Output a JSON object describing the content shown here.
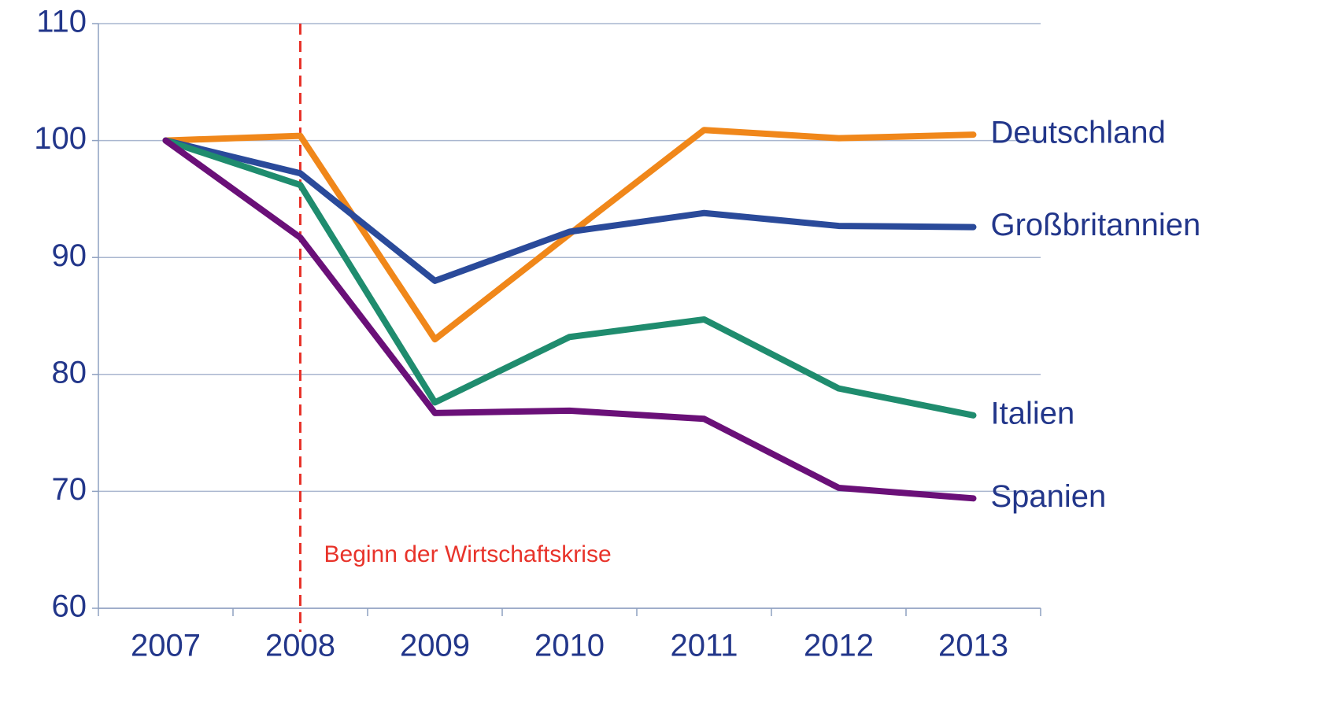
{
  "chart_data": {
    "type": "line",
    "categories": [
      "2007",
      "2008",
      "2009",
      "2010",
      "2011",
      "2012",
      "2013"
    ],
    "series": [
      {
        "name": "Deutschland",
        "color": "#f0871a",
        "values": [
          100,
          100.4,
          83.0,
          92.0,
          100.9,
          100.2,
          100.5
        ]
      },
      {
        "name": "Großbritannien",
        "color": "#2a4a9a",
        "values": [
          100,
          97.2,
          88.0,
          92.2,
          93.8,
          92.7,
          92.6
        ]
      },
      {
        "name": "Italien",
        "color": "#1f8c6e",
        "values": [
          100,
          96.2,
          77.6,
          83.2,
          84.7,
          78.8,
          76.5
        ]
      },
      {
        "name": "Spanien",
        "color": "#6a1078",
        "values": [
          100,
          91.7,
          76.7,
          76.9,
          76.2,
          70.3,
          69.4
        ]
      }
    ],
    "ylim": [
      60,
      110
    ],
    "yticks": [
      60,
      70,
      80,
      90,
      100,
      110
    ],
    "grid": true,
    "annotation": "Beginn der Wirtschaftskrise",
    "annotation_category": "2008",
    "annotation_color": "#e8332a"
  }
}
